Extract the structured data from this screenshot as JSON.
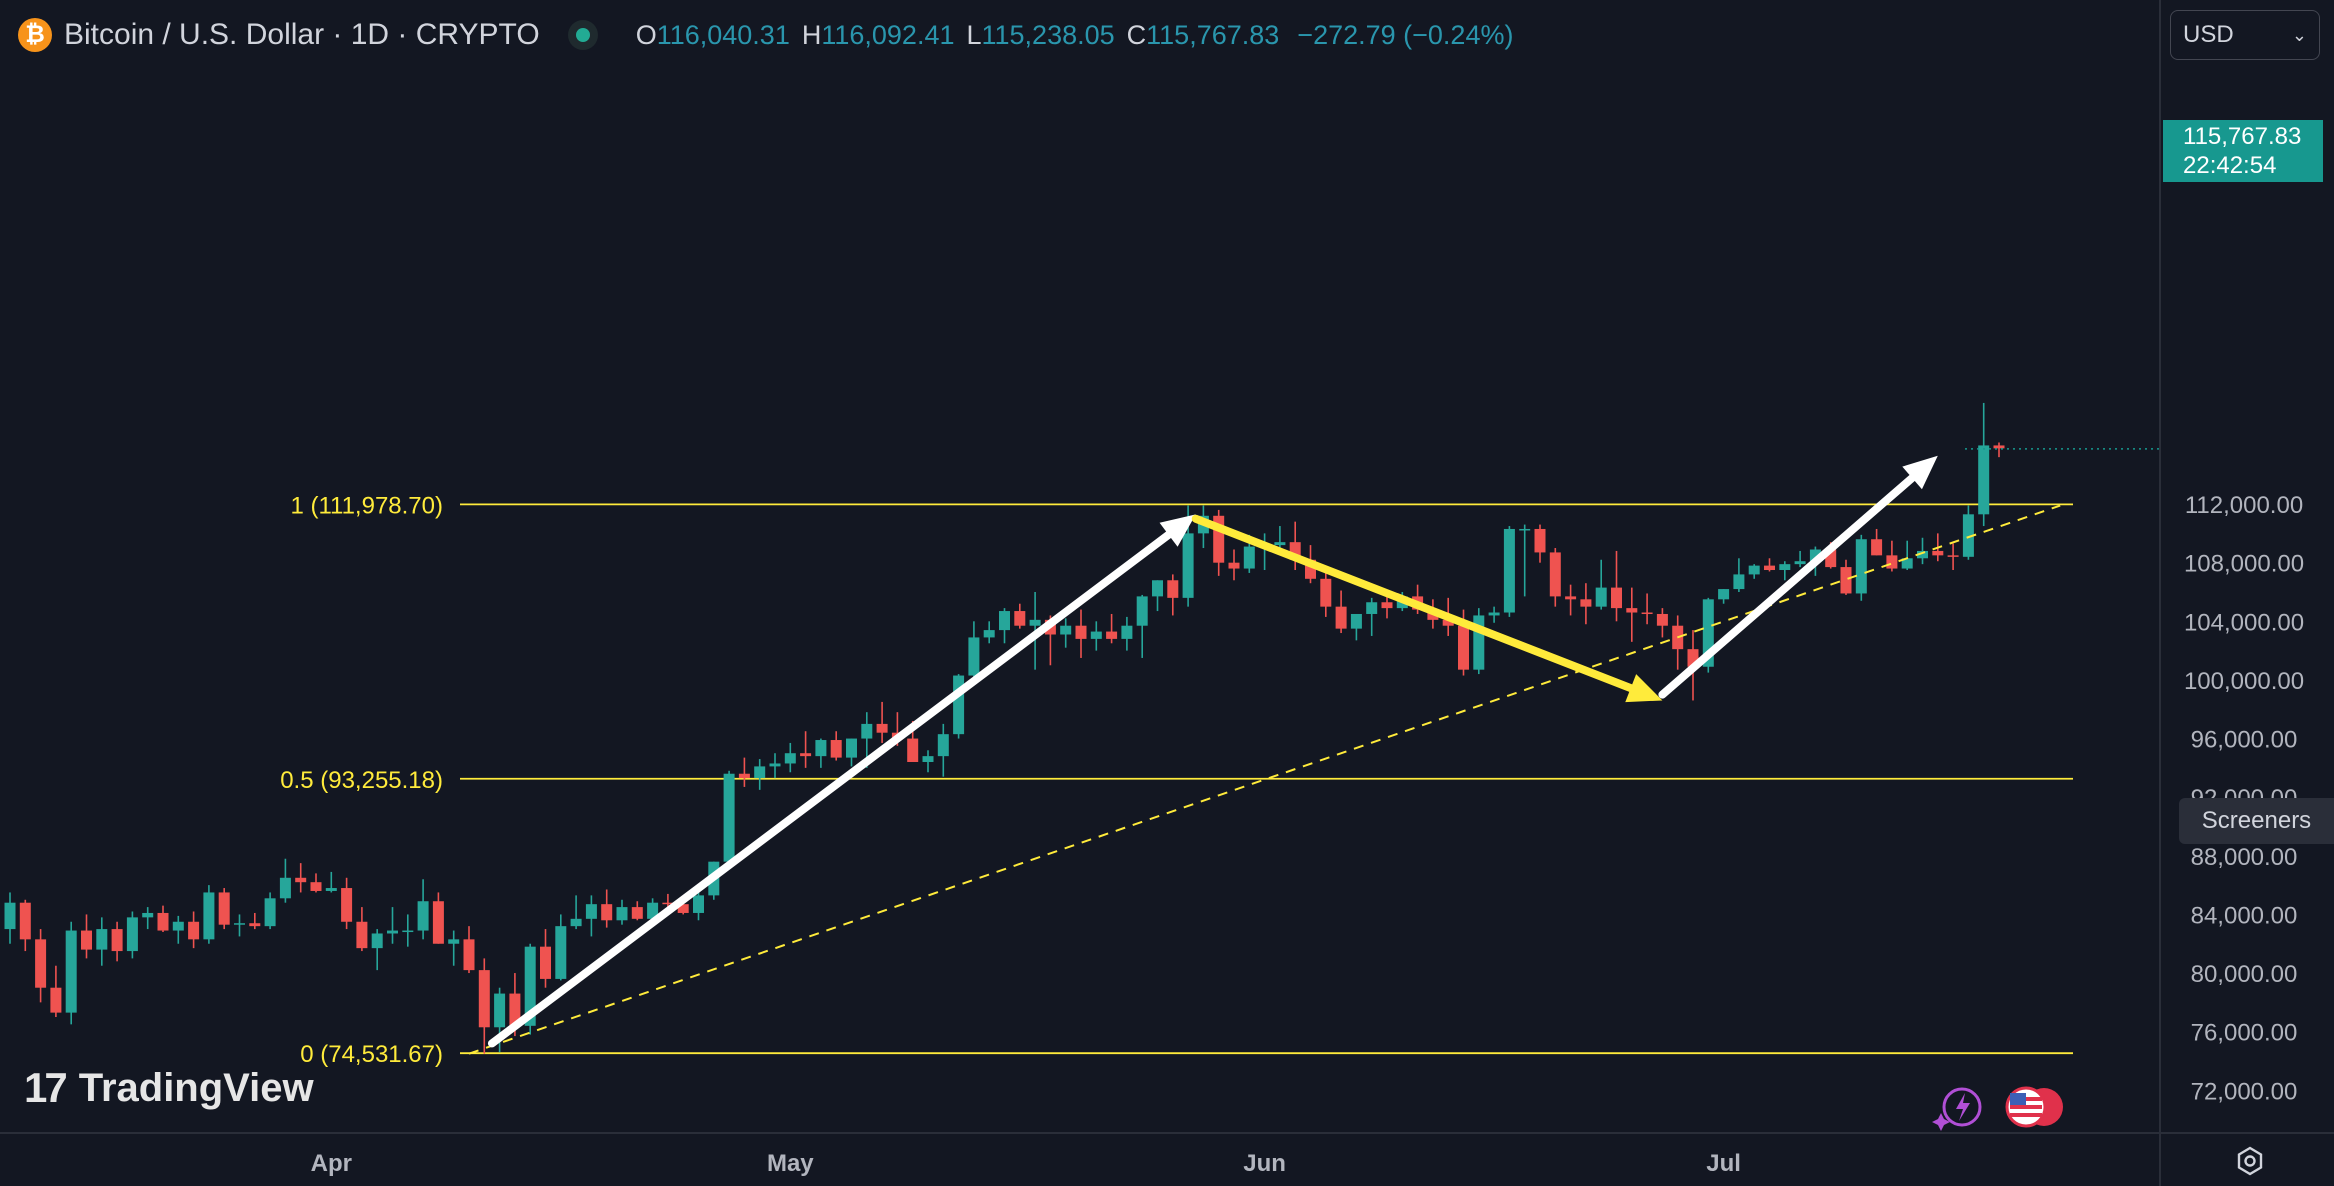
{
  "header": {
    "symbol": "Bitcoin / U.S. Dollar · 1D · CRYPTO",
    "coin_icon": "bitcoin-icon",
    "ohlc": {
      "o_label": "O",
      "o_value": "116,040.31",
      "h_label": "H",
      "h_value": "116,092.41",
      "l_label": "L",
      "l_value": "115,238.05",
      "c_label": "C",
      "c_value": "115,767.83",
      "change": "−272.79 (−0.24%)"
    }
  },
  "currency": {
    "label": "USD",
    "icon": "chevron-down-icon"
  },
  "price_tag": {
    "price": "115,767.83",
    "countdown": "22:42:54"
  },
  "screeners_label": "Screeners",
  "brand": "TradingView",
  "colors": {
    "background": "#131722",
    "up": "#26a69a",
    "down": "#ef5350",
    "fib": "#ffeb3b",
    "arrow": "#ffffff",
    "yellow_arrow": "#ffeb3b",
    "tag": "#17988f"
  },
  "chart_data": {
    "type": "candlestick",
    "title": "Bitcoin / U.S. Dollar · 1D · CRYPTO",
    "ylim": [
      70000,
      122000
    ],
    "y_ticks": [
      "72,000.00",
      "76,000.00",
      "80,000.00",
      "84,000.00",
      "88,000.00",
      "92,000.00",
      "96,000.00",
      "100,000.00",
      "104,000.00",
      "108,000.00",
      "112,000.00"
    ],
    "x_labels": [
      {
        "label": "Apr",
        "day": 21
      },
      {
        "label": "May",
        "day": 51
      },
      {
        "label": "Jun",
        "day": 82
      },
      {
        "label": "Jul",
        "day": 112
      }
    ],
    "fib_levels": [
      {
        "label": "1 (111,978.70)",
        "value": 111978.7
      },
      {
        "label": "0.5 (93,255.18)",
        "value": 93255.18
      },
      {
        "label": "0 (74,531.67)",
        "value": 74531.67
      }
    ],
    "trendline": {
      "from": {
        "day": 30,
        "value": 74500
      },
      "to": {
        "day": 134,
        "value": 111900
      },
      "style": "dashed"
    },
    "arrows": [
      {
        "color": "white",
        "from": {
          "day": 31.5,
          "value": 75200
        },
        "to": {
          "day": 77.5,
          "value": 111300
        }
      },
      {
        "color": "yellow",
        "from": {
          "day": 77.5,
          "value": 111000
        },
        "to": {
          "day": 108,
          "value": 98600
        }
      },
      {
        "color": "white",
        "from": {
          "day": 108,
          "value": 99000
        },
        "to": {
          "day": 126,
          "value": 115300
        }
      }
    ],
    "candles": [
      [
        0,
        83000,
        85500,
        82000,
        84800
      ],
      [
        1,
        84800,
        85000,
        81500,
        82300
      ],
      [
        2,
        82300,
        83000,
        78000,
        79000
      ],
      [
        3,
        79000,
        80500,
        77000,
        77300
      ],
      [
        4,
        77300,
        83500,
        76500,
        82900
      ],
      [
        5,
        82900,
        84000,
        81000,
        81600
      ],
      [
        6,
        81600,
        83800,
        80500,
        83000
      ],
      [
        7,
        83000,
        83500,
        80800,
        81500
      ],
      [
        8,
        81500,
        84200,
        81000,
        83800
      ],
      [
        9,
        83800,
        84500,
        83000,
        84100
      ],
      [
        10,
        84100,
        84600,
        82800,
        82900
      ],
      [
        11,
        82900,
        83900,
        82000,
        83500
      ],
      [
        12,
        83500,
        84200,
        81700,
        82300
      ],
      [
        13,
        82300,
        86000,
        82000,
        85500
      ],
      [
        14,
        85500,
        85800,
        83000,
        83300
      ],
      [
        15,
        83300,
        84000,
        82500,
        83400
      ],
      [
        16,
        83400,
        84100,
        83000,
        83200
      ],
      [
        17,
        83200,
        85500,
        83000,
        85100
      ],
      [
        18,
        85100,
        87800,
        84800,
        86500
      ],
      [
        19,
        86500,
        87500,
        85500,
        86200
      ],
      [
        20,
        86200,
        86800,
        85500,
        85600
      ],
      [
        21,
        85600,
        86900,
        85500,
        85800
      ],
      [
        22,
        85800,
        86500,
        83000,
        83500
      ],
      [
        23,
        83500,
        84500,
        81500,
        81700
      ],
      [
        24,
        81700,
        83000,
        80200,
        82700
      ],
      [
        25,
        82700,
        84500,
        82000,
        82900
      ],
      [
        26,
        82900,
        84000,
        81800,
        82900
      ],
      [
        27,
        82900,
        86400,
        82300,
        84900
      ],
      [
        28,
        84900,
        85500,
        82000,
        82000
      ],
      [
        29,
        82000,
        82900,
        80500,
        82300
      ],
      [
        30,
        82300,
        83200,
        80000,
        80200
      ],
      [
        31,
        80200,
        81000,
        74500,
        76300
      ],
      [
        32,
        76300,
        79000,
        74600,
        78600
      ],
      [
        33,
        78600,
        80000,
        75700,
        76400
      ],
      [
        34,
        76400,
        82000,
        75800,
        81800
      ],
      [
        35,
        81800,
        83000,
        79000,
        79600
      ],
      [
        36,
        79600,
        84000,
        79500,
        83200
      ],
      [
        37,
        83200,
        85300,
        83000,
        83700
      ],
      [
        38,
        83700,
        85300,
        82500,
        84700
      ],
      [
        39,
        84700,
        85700,
        83100,
        83600
      ],
      [
        40,
        83600,
        85000,
        83300,
        84500
      ],
      [
        41,
        84500,
        84900,
        83600,
        83700
      ],
      [
        42,
        83700,
        85100,
        83600,
        84800
      ],
      [
        43,
        84800,
        85400,
        84200,
        84700
      ],
      [
        44,
        84700,
        85300,
        84000,
        84100
      ],
      [
        45,
        84100,
        85500,
        83600,
        85300
      ],
      [
        46,
        85300,
        87600,
        85000,
        87600
      ],
      [
        47,
        87600,
        93800,
        87300,
        93600
      ],
      [
        48,
        93600,
        94700,
        92700,
        93300
      ],
      [
        49,
        93300,
        94600,
        92500,
        94100
      ],
      [
        50,
        94100,
        95000,
        93300,
        94300
      ],
      [
        51,
        94300,
        95700,
        93700,
        95000
      ],
      [
        52,
        95000,
        96500,
        94000,
        94800
      ],
      [
        53,
        94800,
        96000,
        94000,
        95900
      ],
      [
        54,
        95900,
        96500,
        94500,
        94700
      ],
      [
        55,
        94700,
        96000,
        94100,
        96000
      ],
      [
        56,
        96000,
        97800,
        94000,
        97000
      ],
      [
        57,
        97000,
        98500,
        95700,
        96400
      ],
      [
        58,
        96400,
        97800,
        95500,
        96000
      ],
      [
        59,
        96000,
        97200,
        94400,
        94400
      ],
      [
        60,
        94400,
        95200,
        93700,
        94800
      ],
      [
        61,
        94800,
        97000,
        93400,
        96300
      ],
      [
        62,
        96300,
        100400,
        96000,
        100300
      ],
      [
        63,
        100300,
        104000,
        100000,
        102900
      ],
      [
        64,
        102900,
        104000,
        102500,
        103400
      ],
      [
        65,
        103400,
        104900,
        102500,
        104700
      ],
      [
        66,
        104700,
        105200,
        103500,
        103700
      ],
      [
        67,
        103700,
        106000,
        100700,
        104100
      ],
      [
        68,
        104100,
        104400,
        101000,
        103100
      ],
      [
        69,
        103100,
        104200,
        102200,
        103700
      ],
      [
        70,
        103700,
        104800,
        101500,
        102800
      ],
      [
        71,
        102800,
        104000,
        102000,
        103300
      ],
      [
        72,
        103300,
        104500,
        102500,
        102800
      ],
      [
        73,
        102800,
        104300,
        102000,
        103700
      ],
      [
        74,
        103700,
        105800,
        101500,
        105700
      ],
      [
        75,
        105700,
        106800,
        104700,
        106800
      ],
      [
        76,
        106800,
        107200,
        104400,
        105600
      ],
      [
        77,
        105600,
        111900,
        105000,
        110000
      ],
      [
        78,
        110000,
        111900,
        109000,
        111200
      ],
      [
        79,
        111200,
        111600,
        107100,
        108000
      ],
      [
        80,
        108000,
        108900,
        106800,
        107600
      ],
      [
        81,
        107600,
        109900,
        107300,
        109100
      ],
      [
        82,
        109100,
        110000,
        107500,
        109200
      ],
      [
        83,
        109200,
        110500,
        108900,
        109400
      ],
      [
        84,
        109400,
        110800,
        107500,
        108200
      ],
      [
        85,
        108200,
        109200,
        106600,
        106900
      ],
      [
        86,
        106900,
        107500,
        104300,
        105000
      ],
      [
        87,
        105000,
        106100,
        103200,
        103500
      ],
      [
        88,
        103500,
        104300,
        102700,
        104500
      ],
      [
        89,
        104500,
        105600,
        103000,
        105300
      ],
      [
        90,
        105300,
        105900,
        104200,
        104900
      ],
      [
        91,
        104900,
        106000,
        104700,
        105700
      ],
      [
        92,
        105700,
        106500,
        104500,
        104800
      ],
      [
        93,
        104800,
        105500,
        103500,
        104100
      ],
      [
        94,
        104100,
        105600,
        103000,
        103700
      ],
      [
        95,
        103700,
        104800,
        100300,
        100700
      ],
      [
        96,
        100700,
        104900,
        100400,
        104400
      ],
      [
        97,
        104400,
        105000,
        103900,
        104600
      ],
      [
        98,
        104600,
        110500,
        104300,
        110300
      ],
      [
        99,
        110300,
        110600,
        105700,
        110300
      ],
      [
        100,
        110300,
        110600,
        108000,
        108700
      ],
      [
        101,
        108700,
        109000,
        105000,
        105700
      ],
      [
        102,
        105700,
        106500,
        104400,
        105500
      ],
      [
        103,
        105500,
        106600,
        103800,
        105000
      ],
      [
        104,
        105000,
        108200,
        104800,
        106300
      ],
      [
        105,
        106300,
        108800,
        104000,
        104900
      ],
      [
        106,
        104900,
        106300,
        102600,
        104600
      ],
      [
        107,
        104600,
        105900,
        103800,
        104500
      ],
      [
        108,
        104500,
        104900,
        102900,
        103700
      ],
      [
        109,
        103700,
        104400,
        100700,
        102100
      ],
      [
        110,
        102100,
        103400,
        98600,
        100900
      ],
      [
        111,
        100900,
        105600,
        100500,
        105500
      ],
      [
        112,
        105500,
        106200,
        105200,
        106200
      ],
      [
        113,
        106200,
        108300,
        106000,
        107200
      ],
      [
        114,
        107200,
        107900,
        106900,
        107800
      ],
      [
        115,
        107800,
        108300,
        107400,
        107500
      ],
      [
        116,
        107500,
        108100,
        106800,
        107900
      ],
      [
        117,
        107900,
        108800,
        107700,
        108100
      ],
      [
        118,
        108100,
        109100,
        107100,
        108900
      ],
      [
        119,
        108900,
        109400,
        107600,
        107700
      ],
      [
        120,
        107700,
        108200,
        105800,
        105900
      ],
      [
        121,
        105900,
        109900,
        105400,
        109600
      ],
      [
        122,
        109600,
        110300,
        108500,
        108500
      ],
      [
        123,
        108500,
        109500,
        107400,
        107600
      ],
      [
        124,
        107600,
        109500,
        107500,
        108300
      ],
      [
        125,
        108300,
        109700,
        107900,
        108800
      ],
      [
        126,
        108800,
        110000,
        108100,
        108500
      ],
      [
        127,
        108500,
        109300,
        107500,
        108400
      ],
      [
        128,
        108400,
        111900,
        108200,
        111300
      ],
      [
        129,
        111300,
        118900,
        110500,
        116000
      ],
      [
        130,
        116000,
        116200,
        115200,
        115800
      ]
    ]
  }
}
